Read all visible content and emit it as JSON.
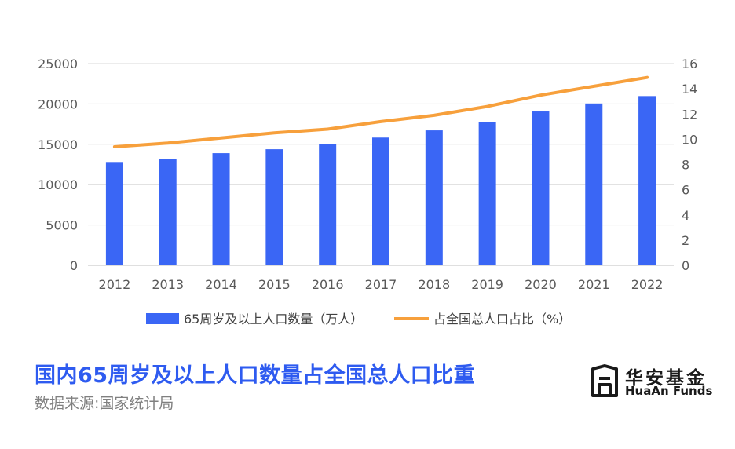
{
  "chart_data": {
    "type": "bar",
    "categories": [
      "2012",
      "2013",
      "2014",
      "2015",
      "2016",
      "2017",
      "2018",
      "2019",
      "2020",
      "2021",
      "2022"
    ],
    "series": [
      {
        "name": "65周岁及以上人口数量（万人）",
        "type": "bar",
        "axis": "left",
        "color": "#3a66f5",
        "values": [
          12714,
          13161,
          13902,
          14386,
          15003,
          15831,
          16724,
          17767,
          19064,
          20056,
          20978
        ]
      },
      {
        "name": "占全国总人口占比（%）",
        "type": "line",
        "axis": "right",
        "color": "#f7a03c",
        "values": [
          9.4,
          9.7,
          10.1,
          10.5,
          10.8,
          11.4,
          11.9,
          12.6,
          13.5,
          14.2,
          14.9
        ]
      }
    ],
    "y_left": {
      "ticks": [
        "0",
        "5000",
        "10000",
        "15000",
        "20000",
        "25000"
      ],
      "ylim": [
        0,
        25000
      ]
    },
    "y_right": {
      "ticks": [
        "0",
        "2",
        "4",
        "6",
        "8",
        "10",
        "12",
        "14",
        "16"
      ],
      "ylim": [
        0,
        16
      ]
    },
    "grid": true,
    "legend_position": "bottom"
  },
  "title": "国内65周岁及以上人口数量占全国总人口比重",
  "source": "数据来源:国家统计局",
  "logo": {
    "cn": "华安基金",
    "en": "HuaAn Funds"
  }
}
